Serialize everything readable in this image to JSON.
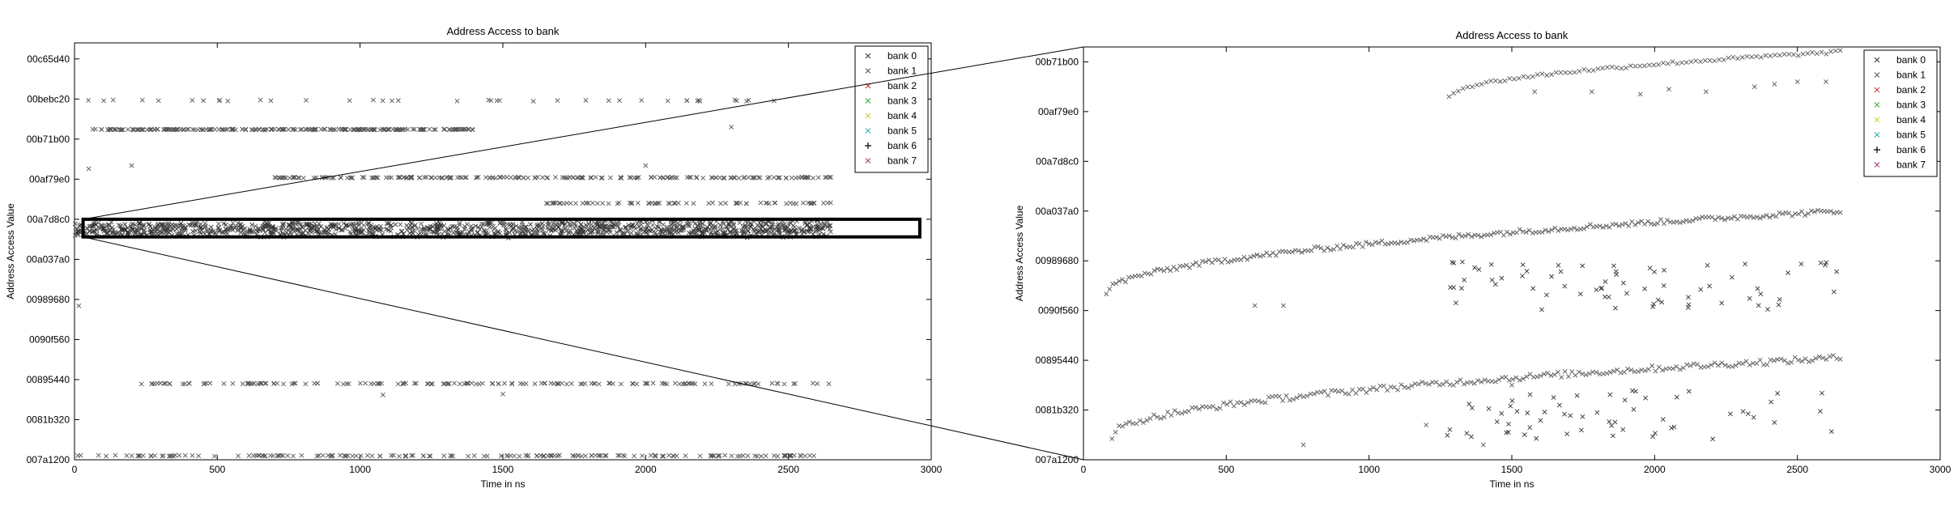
{
  "chart_data": [
    {
      "type": "scatter",
      "title": "Address Access to bank",
      "xlabel": "Time in ns",
      "ylabel": "Address Access Value",
      "xlim": [
        0,
        3000
      ],
      "ylim": [
        0,
        5.2
      ],
      "xticks": [
        0,
        500,
        1000,
        1500,
        2000,
        2500,
        3000
      ],
      "yticks": [
        "007a1200",
        "0081b320",
        "00895440",
        "0090f560",
        "00989680",
        "00a037a0",
        "00a7d8c0",
        "00af79e0",
        "00b71b00",
        "00bebc20",
        "00c65d40"
      ],
      "ytick_values": [
        0,
        0.5,
        1,
        1.5,
        2,
        2.5,
        3,
        3.5,
        4,
        4.5,
        5
      ],
      "grid": false,
      "legend_position": "top-right",
      "legend": [
        "bank 0",
        "bank 1",
        "bank 2",
        "bank 3",
        "bank 4",
        "bank 5",
        "bank 6",
        "bank 7"
      ],
      "zoom_box": {
        "x": [
          30,
          2960
        ],
        "y": [
          2.78,
          3.0
        ]
      },
      "series": [
        {
          "name": "bank 0",
          "marker": "x",
          "color": "#555555",
          "bands": [
            {
              "x": [
                0,
                2650
              ],
              "y": [
                2.81,
                2.96
              ],
              "count": 700,
              "spread": 0.015
            },
            {
              "x": [
                1650,
                2650
              ],
              "y": [
                2.97,
                2.99
              ],
              "count": 60,
              "spread": 0.01
            },
            {
              "x": [
                0,
                2600
              ],
              "y": [
                0.05,
                0.05
              ],
              "count": 180,
              "spread": 0.006
            },
            {
              "x": [
                230,
                2650
              ],
              "y": [
                0.95,
                0.95
              ],
              "count": 160,
              "spread": 0.006
            },
            {
              "x": [
                60,
                1400
              ],
              "y": [
                4.12,
                4.12
              ],
              "count": 230,
              "spread": 0.005
            },
            {
              "x": [
                700,
                2650
              ],
              "y": [
                3.52,
                3.52
              ],
              "count": 200,
              "spread": 0.006
            },
            {
              "x": [
                1650,
                2650
              ],
              "y": [
                3.2,
                3.2
              ],
              "count": 70,
              "spread": 0.006
            },
            {
              "x": [
                0,
                2600
              ],
              "y": [
                4.48,
                4.48
              ],
              "count": 40,
              "spread": 0.008
            }
          ],
          "points": [
            [
              15,
              1.92
            ],
            [
              50,
              3.63
            ],
            [
              200,
              3.67
            ],
            [
              1080,
              0.81
            ],
            [
              1500,
              0.82
            ],
            [
              2300,
              4.15
            ],
            [
              2000,
              3.67
            ],
            [
              1800,
              3.2
            ]
          ]
        },
        {
          "name": "bank 1",
          "marker": "x",
          "color": "#333333",
          "bands": [
            {
              "x": [
                0,
                2650
              ],
              "y": [
                2.78,
                2.95
              ],
              "count": 500,
              "spread": 0.015
            }
          ],
          "points": []
        }
      ]
    },
    {
      "type": "scatter",
      "title": "Address Access to bank",
      "xlabel": "Time in ns",
      "ylabel": "Address Access Value",
      "xlim": [
        0,
        3000
      ],
      "ylim": [
        0,
        8.3
      ],
      "xticks": [
        0,
        500,
        1000,
        1500,
        2000,
        2500,
        3000
      ],
      "yticks": [
        "007a1200",
        "0081b320",
        "00895440",
        "0090f560",
        "00989680",
        "00a037a0",
        "00a7d8c0",
        "00af79e0",
        "00b71b00"
      ],
      "ytick_values": [
        0,
        1,
        2,
        3,
        4,
        5,
        6,
        7,
        8
      ],
      "grid": false,
      "legend_position": "top-right",
      "legend": [
        "bank 0",
        "bank 1",
        "bank 2",
        "bank 3",
        "bank 4",
        "bank 5",
        "bank 6",
        "bank 7"
      ],
      "series": [
        {
          "name": "bank 0",
          "marker": "x",
          "color": "#555555",
          "curves": [
            {
              "x": [
                80,
                2650
              ],
              "y_start": 3.35,
              "y_end": 5.0,
              "count": 230,
              "noise": 0.05
            },
            {
              "x": [
                100,
                2650
              ],
              "y_start": 0.48,
              "y_end": 2.05,
              "count": 210,
              "noise": 0.06
            },
            {
              "x": [
                1280,
                2650
              ],
              "y_start": 7.3,
              "y_end": 8.2,
              "count": 85,
              "noise": 0.03
            }
          ],
          "points": [
            [
              1580,
              7.4
            ],
            [
              1780,
              7.4
            ],
            [
              1950,
              7.35
            ],
            [
              2050,
              7.45
            ],
            [
              2180,
              7.4
            ],
            [
              2350,
              7.5
            ],
            [
              2420,
              7.55
            ],
            [
              2500,
              7.6
            ],
            [
              2600,
              7.6
            ],
            [
              600,
              3.1
            ],
            [
              700,
              3.1
            ],
            [
              770,
              0.3
            ],
            [
              1200,
              0.7
            ],
            [
              1400,
              0.3
            ],
            [
              1500,
              1.5
            ]
          ]
        },
        {
          "name": "bank 1",
          "marker": "x",
          "color": "#333333",
          "scatter_regions": [
            {
              "x": [
                1250,
                2650
              ],
              "y": [
                3.0,
                4.0
              ],
              "count": 70
            },
            {
              "x": [
                1250,
                2650
              ],
              "y": [
                0.4,
                1.4
              ],
              "count": 60
            }
          ],
          "points": []
        }
      ]
    }
  ]
}
